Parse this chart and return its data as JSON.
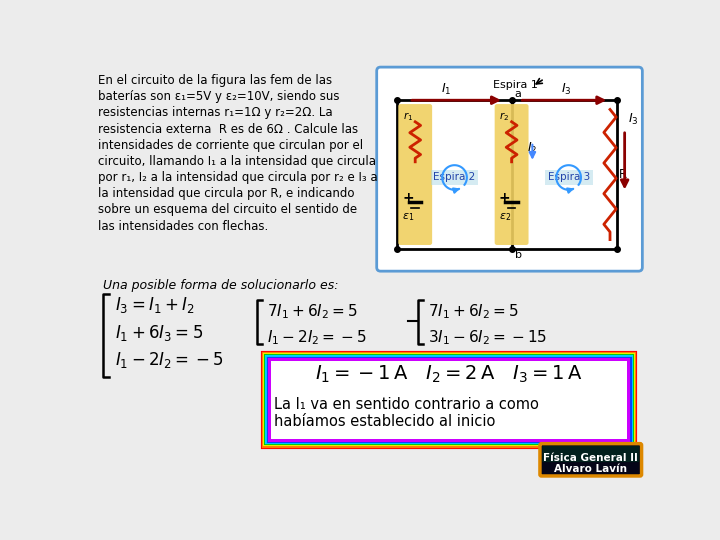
{
  "bg_color": "#ececec",
  "problem_text_lines": [
    "En el circuito de la figura las fem de las",
    "baterías son ε₁=5V y ε₂=10V, siendo sus",
    "resistencias internas r₁=1Ω y r₂=2Ω. La",
    "resistencia externa  R es de 6Ω . Calcule las",
    "intensidades de corriente que circulan por el",
    "circuito, llamando I₁ a la intensidad que circula",
    "por r₁, I₂ a la intensidad que circula por r₂ e I₃ a",
    "la intensidad que circula por R, e indicando",
    "sobre un esquema del circuito el sentido de",
    "las intensidades con flechas."
  ],
  "solution_label": "Una posible forma de solucionarlo es:",
  "result_text1": "La I₁ va en sentido contrario a como",
  "result_text2": "habíamos establecido al inicio",
  "footer_line1": "Física General II",
  "footer_line2": "Alvaro Lavín",
  "circuit_border_color": "#5b9bd5",
  "yellow_fill": "#f0d060",
  "cyan_fill": "#add8e6"
}
